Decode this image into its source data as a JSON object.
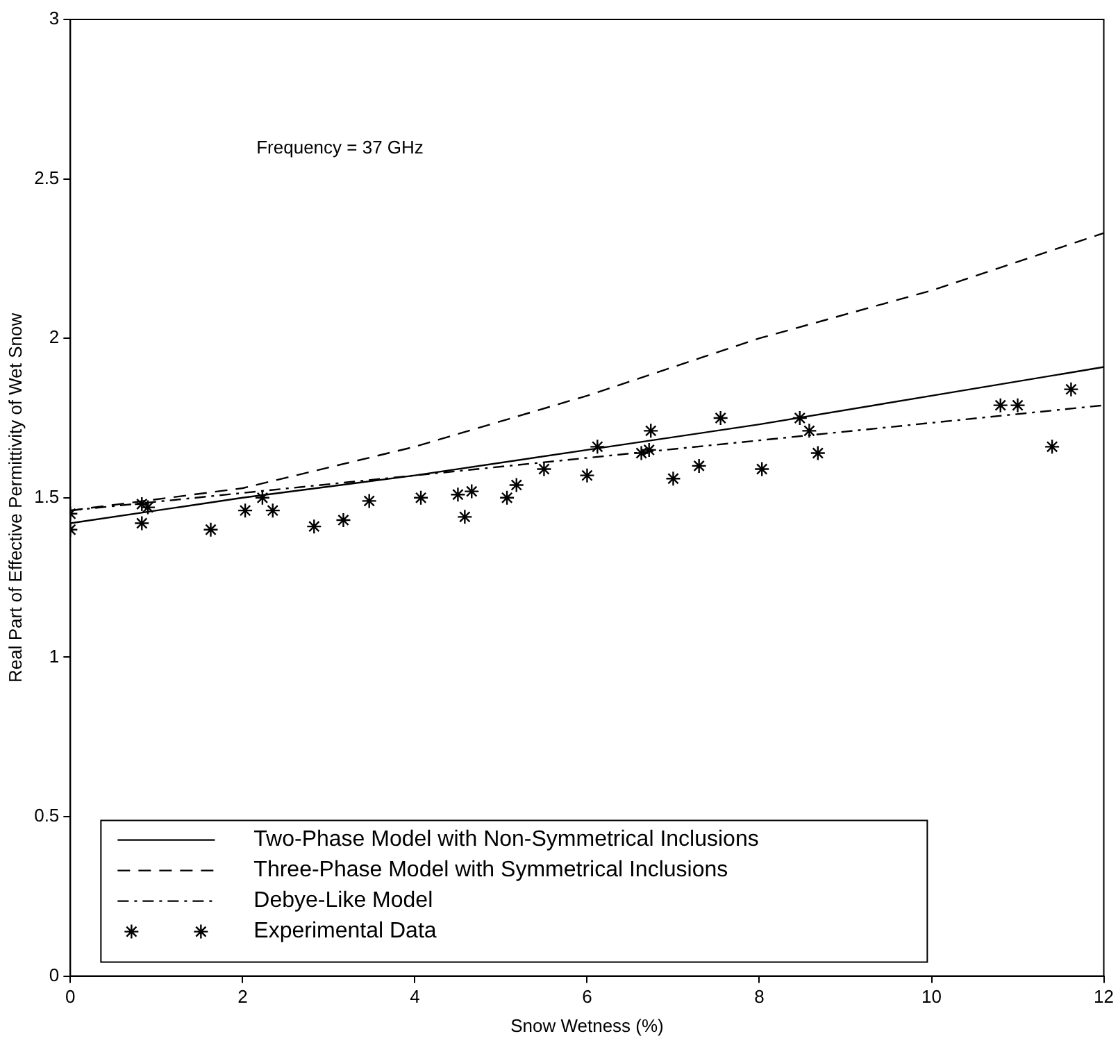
{
  "chart_data": {
    "type": "line",
    "xlabel": "Snow Wetness (%)",
    "ylabel": "Real Part of Effective Permittivity of Wet Snow",
    "annotations": [
      "Frequency = 37 GHz"
    ],
    "xlim": [
      0,
      12
    ],
    "ylim": [
      0,
      3
    ],
    "xticks": [
      0,
      2,
      4,
      6,
      8,
      10,
      12
    ],
    "yticks": [
      0,
      0.5,
      1,
      1.5,
      2,
      2.5,
      3
    ],
    "grid": false,
    "legend": "bottom left",
    "series": [
      {
        "name": "Two-Phase Model with Non-Symmetrical Inclusions",
        "color": "#000000",
        "line_style": "solid",
        "marker": "none",
        "x": [
          0,
          2,
          4,
          6,
          8,
          10,
          12
        ],
        "values": [
          1.42,
          1.5,
          1.57,
          1.65,
          1.73,
          1.82,
          1.91
        ]
      },
      {
        "name": "Three-Phase Model with Symmetrical Inclusions",
        "color": "#000000",
        "line_style": "dashed",
        "marker": "none",
        "x": [
          0,
          2,
          4,
          6,
          8,
          10,
          12
        ],
        "values": [
          1.46,
          1.53,
          1.66,
          1.82,
          2.0,
          2.15,
          2.33
        ]
      },
      {
        "name": "Debye-Like Model",
        "color": "#000000",
        "line_style": "dashdot",
        "marker": "none",
        "x": [
          0,
          2,
          4,
          6,
          8,
          10,
          12
        ],
        "values": [
          1.46,
          1.515,
          1.57,
          1.625,
          1.68,
          1.735,
          1.79
        ]
      },
      {
        "name": "Experimental Data",
        "color": "#000000",
        "type": "scatter",
        "marker": "cross",
        "x": [
          0,
          0,
          0.83,
          0.83,
          0.9,
          1.63,
          2.03,
          2.23,
          2.35,
          2.83,
          3.17,
          3.47,
          4.07,
          4.5,
          4.58,
          4.66,
          5.07,
          5.18,
          5.5,
          6.0,
          6.12,
          6.63,
          6.72,
          6.74,
          7.0,
          7.3,
          7.55,
          8.03,
          8.47,
          8.58,
          8.68,
          10.8,
          11.0,
          11.4,
          11.62
        ],
        "values": [
          1.4,
          1.45,
          1.48,
          1.42,
          1.47,
          1.4,
          1.46,
          1.5,
          1.46,
          1.41,
          1.43,
          1.49,
          1.5,
          1.51,
          1.44,
          1.52,
          1.5,
          1.54,
          1.59,
          1.57,
          1.66,
          1.64,
          1.65,
          1.71,
          1.56,
          1.6,
          1.75,
          1.59,
          1.75,
          1.71,
          1.64,
          1.79,
          1.79,
          1.66,
          1.84
        ]
      }
    ]
  }
}
